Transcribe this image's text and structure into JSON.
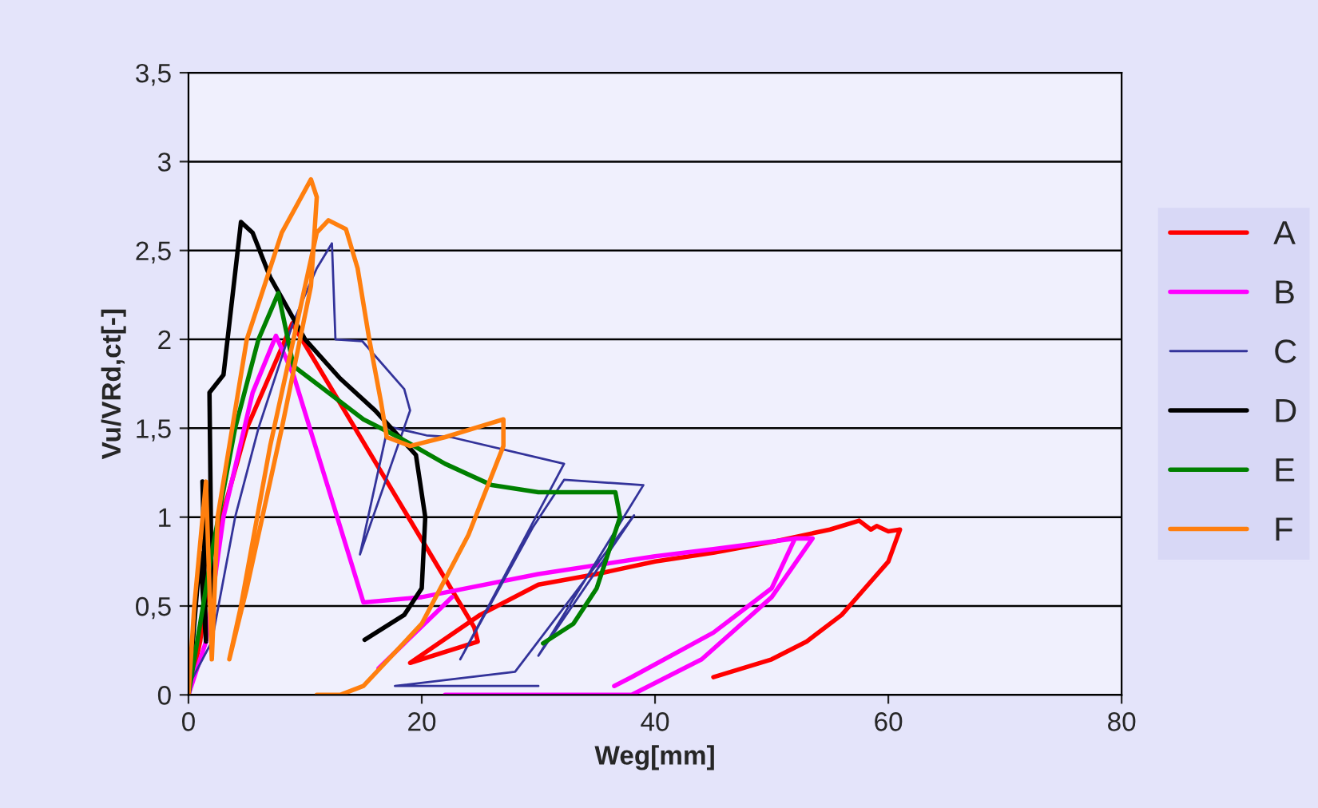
{
  "chart_data": {
    "type": "line",
    "xlabel": "Weg[mm]",
    "ylabel": "Vu/VRd,ct[-]",
    "xlim": [
      0,
      80
    ],
    "ylim": [
      0,
      3.5
    ],
    "xticks": [
      0,
      20,
      40,
      60,
      80
    ],
    "yticks": [
      0,
      {
        "value": 0.5,
        "label": "0,5"
      },
      1,
      {
        "value": 1.5,
        "label": "1,5"
      },
      2,
      {
        "value": 2.5,
        "label": "2,5"
      },
      3,
      {
        "value": 3.5,
        "label": "3,5"
      }
    ],
    "grid": "y",
    "legend": "right",
    "marker": "none",
    "series": [
      {
        "name": "A",
        "color": "#ff0000",
        "x": [
          0,
          1,
          2,
          5,
          8.9,
          24.5,
          24.8,
          19,
          25,
          30,
          35,
          40,
          45,
          50,
          55,
          57.5,
          58.5,
          59,
          60,
          61,
          60,
          58,
          56,
          53,
          50,
          45
        ],
        "values": [
          0,
          0.3,
          0.8,
          1.5,
          2.09,
          0.38,
          0.3,
          0.18,
          0.45,
          0.62,
          0.68,
          0.75,
          0.8,
          0.86,
          0.93,
          0.98,
          0.93,
          0.95,
          0.92,
          0.93,
          0.75,
          0.6,
          0.45,
          0.3,
          0.2,
          0.1
        ]
      },
      {
        "name": "B",
        "color": "#ff00ff",
        "x": [
          0,
          1.5,
          3,
          5.5,
          7.5,
          9,
          15,
          20,
          30,
          40,
          45,
          52,
          50,
          45,
          38,
          36.5,
          null,
          16.3,
          22.6,
          null,
          22,
          38,
          44,
          50,
          53.5,
          52
        ],
        "values": [
          0,
          0.3,
          1,
          1.7,
          2.02,
          1.8,
          0.52,
          0.55,
          0.68,
          0.78,
          0.82,
          0.88,
          0.6,
          0.35,
          0.1,
          0.05,
          null,
          0.15,
          0.55,
          null,
          0,
          0,
          0.2,
          0.55,
          0.88,
          0.88
        ]
      },
      {
        "name": "C",
        "color": "#33339a",
        "x": [
          0,
          2,
          4,
          6,
          9,
          11,
          12.3,
          12.6,
          14.9,
          18.5,
          19,
          14.7,
          17.1,
          20.4,
          22.5,
          32.2,
          23.3,
          29.5,
          32.2,
          39,
          30,
          38.2,
          28,
          17.7,
          30
        ],
        "values": [
          0.05,
          0.3,
          1,
          1.5,
          2.1,
          2.4,
          2.54,
          2.0,
          1.99,
          1.72,
          1.6,
          0.79,
          1.51,
          1.46,
          1.45,
          1.3,
          0.2,
          0.94,
          1.21,
          1.18,
          0.22,
          1.01,
          0.13,
          0.05,
          0.05
        ]
      },
      {
        "name": "D",
        "color": "#000000",
        "x": [
          0,
          1,
          1.5,
          1.2,
          2,
          1.8,
          3,
          4.5,
          5.5,
          7,
          10,
          13,
          16,
          19.5,
          20.3,
          20,
          18.5,
          15.1
        ],
        "values": [
          0,
          0.8,
          0.3,
          1.2,
          0.5,
          1.7,
          1.8,
          2.66,
          2.6,
          2.35,
          2.0,
          1.78,
          1.6,
          1.35,
          1.0,
          0.6,
          0.45,
          0.31
        ]
      },
      {
        "name": "E",
        "color": "#008000",
        "x": [
          0,
          2,
          4,
          6,
          7.7,
          9,
          12,
          15,
          18,
          22,
          26,
          30,
          36.6,
          37,
          35,
          33,
          30.4
        ],
        "values": [
          0,
          0.8,
          1.5,
          2.0,
          2.26,
          1.85,
          1.7,
          1.55,
          1.45,
          1.3,
          1.18,
          1.14,
          1.14,
          1.0,
          0.6,
          0.4,
          0.29
        ]
      },
      {
        "name": "F",
        "color": "#ff7f0e",
        "x": [
          0,
          0.5,
          1.5,
          2,
          2.5,
          5,
          8,
          10.5,
          11,
          10.5,
          8,
          5,
          3.5,
          4.5,
          7,
          9,
          11,
          12,
          13.5,
          14.5,
          15.5,
          16.5,
          17,
          19,
          22,
          25.5,
          27,
          27,
          24,
          20,
          15,
          13,
          11
        ],
        "values": [
          0,
          0.5,
          1.2,
          0.2,
          1.0,
          2.0,
          2.6,
          2.9,
          2.8,
          2.3,
          1.5,
          0.6,
          0.2,
          0.5,
          1.4,
          2.0,
          2.6,
          2.67,
          2.62,
          2.4,
          2.0,
          1.65,
          1.45,
          1.4,
          1.45,
          1.52,
          1.55,
          1.4,
          0.9,
          0.4,
          0.05,
          0,
          0
        ]
      }
    ]
  }
}
